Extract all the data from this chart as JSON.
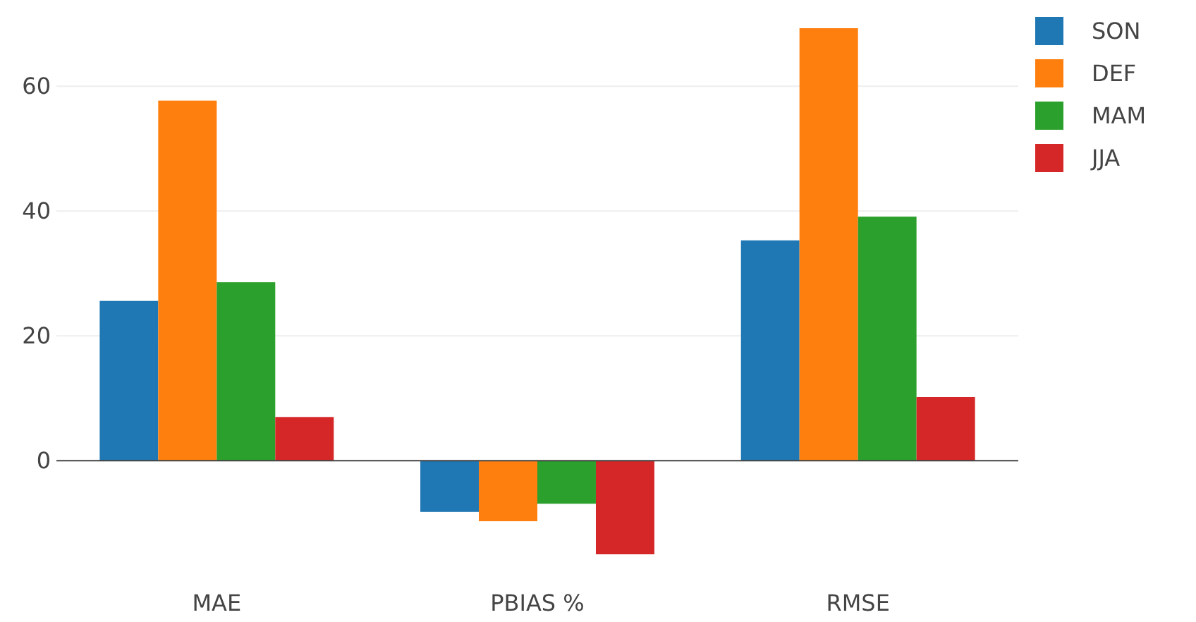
{
  "chart_data": {
    "type": "bar",
    "categories": [
      "MAE",
      "PBIAS %",
      "RMSE"
    ],
    "series": [
      {
        "name": "SON",
        "color": "#1f77b4",
        "values": [
          25.6,
          -8.2,
          35.3
        ]
      },
      {
        "name": "DEF",
        "color": "#ff7f0e",
        "values": [
          57.7,
          -9.7,
          69.3
        ]
      },
      {
        "name": "MAM",
        "color": "#2ca02c",
        "values": [
          28.6,
          -6.9,
          39.1
        ]
      },
      {
        "name": "JJA",
        "color": "#d62728",
        "values": [
          7.0,
          -15.0,
          10.2
        ]
      }
    ],
    "ylim": [
      -15.0,
      69.3
    ],
    "yticks": [
      0,
      20,
      40,
      60
    ],
    "grid": "y",
    "legend": "top right"
  }
}
